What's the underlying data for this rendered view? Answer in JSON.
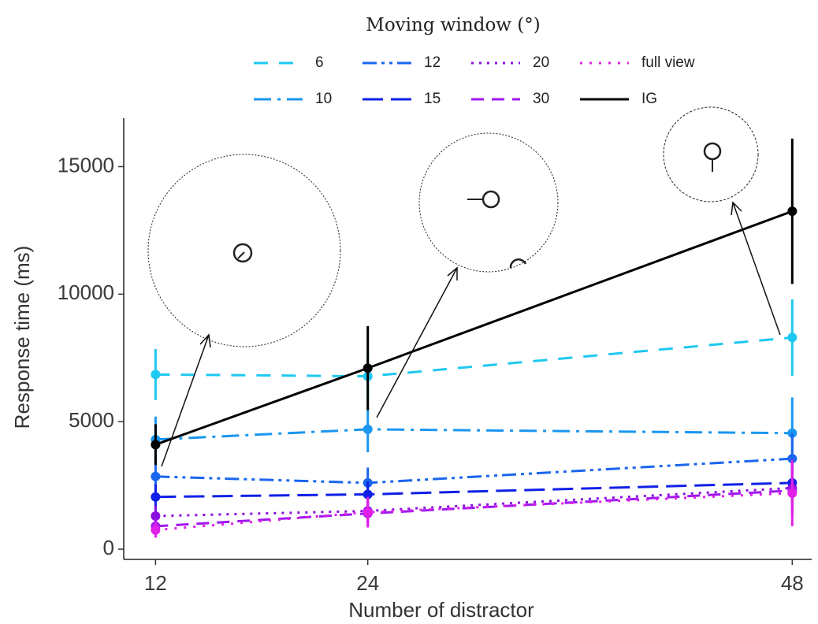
{
  "chart_data": {
    "type": "line",
    "legend_title": "Moving window (°)",
    "xlabel": "Number of distractor",
    "ylabel": "Response time (ms)",
    "x": [
      12,
      24,
      48
    ],
    "xlim": [
      10.2,
      49.1
    ],
    "xticks": [
      12,
      24,
      48
    ],
    "ylim": [
      -400,
      16900
    ],
    "yticks": [
      0,
      5000,
      10000,
      15000
    ],
    "legend": "top",
    "series": [
      {
        "name": "6",
        "color": "#1ec8f0",
        "values": [
          6850,
          6780,
          8300
        ],
        "errors": [
          1000,
          900,
          1500
        ]
      },
      {
        "name": "10",
        "color": "#1a96f0",
        "values": [
          4300,
          4700,
          4550
        ],
        "errors": [
          900,
          900,
          1400
        ]
      },
      {
        "name": "12",
        "color": "#1a66ee",
        "values": [
          2850,
          2600,
          3550
        ],
        "errors": [
          700,
          600,
          1000
        ]
      },
      {
        "name": "15",
        "color": "#1020e6",
        "values": [
          2050,
          2150,
          2600
        ],
        "errors": [
          500,
          500,
          800
        ]
      },
      {
        "name": "20",
        "color": "#8a10e0",
        "values": [
          1300,
          1500,
          2400
        ],
        "errors": [
          400,
          500,
          900
        ]
      },
      {
        "name": "30",
        "color": "#a018ee",
        "values": [
          900,
          1400,
          2300
        ],
        "errors": [
          300,
          500,
          1000
        ]
      },
      {
        "name": "full view",
        "color": "#e020e8",
        "values": [
          750,
          1450,
          2200
        ],
        "errors": [
          300,
          600,
          1300
        ]
      },
      {
        "name": "IG",
        "color": "#000000",
        "values": [
          4100,
          7100,
          13250
        ],
        "errors": [
          800,
          1650,
          2850
        ]
      }
    ]
  }
}
